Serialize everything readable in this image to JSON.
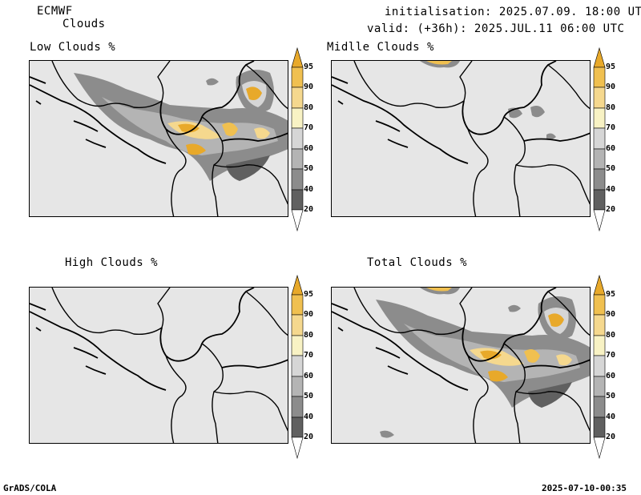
{
  "header": {
    "model": "ECMWF",
    "product": "Clouds",
    "initialisation": "initialisation: 2025.07.09. 18:00 UTC",
    "valid": "valid: (+36h): 2025.JUL.11 06:00 UTC"
  },
  "panels": [
    {
      "title": "Low Clouds %"
    },
    {
      "title": "Midlle Clouds %"
    },
    {
      "title": "High Clouds %"
    },
    {
      "title": "Total Clouds %"
    }
  ],
  "colorbar": {
    "levels": [
      "95",
      "90",
      "80",
      "70",
      "60",
      "50",
      "40",
      "20"
    ],
    "colors": {
      "c95": "#e8a92a",
      "c90": "#f0c050",
      "c80": "#f5d88e",
      "c70": "#f8f2c4",
      "c60": "#d6d6d6",
      "c50": "#b4b4b4",
      "c40": "#8c8c8c",
      "c20": "#606060",
      "low": "#ffffff"
    }
  },
  "footer": {
    "left": "GrADS/COLA",
    "right": "2025-07-10-00:35"
  }
}
